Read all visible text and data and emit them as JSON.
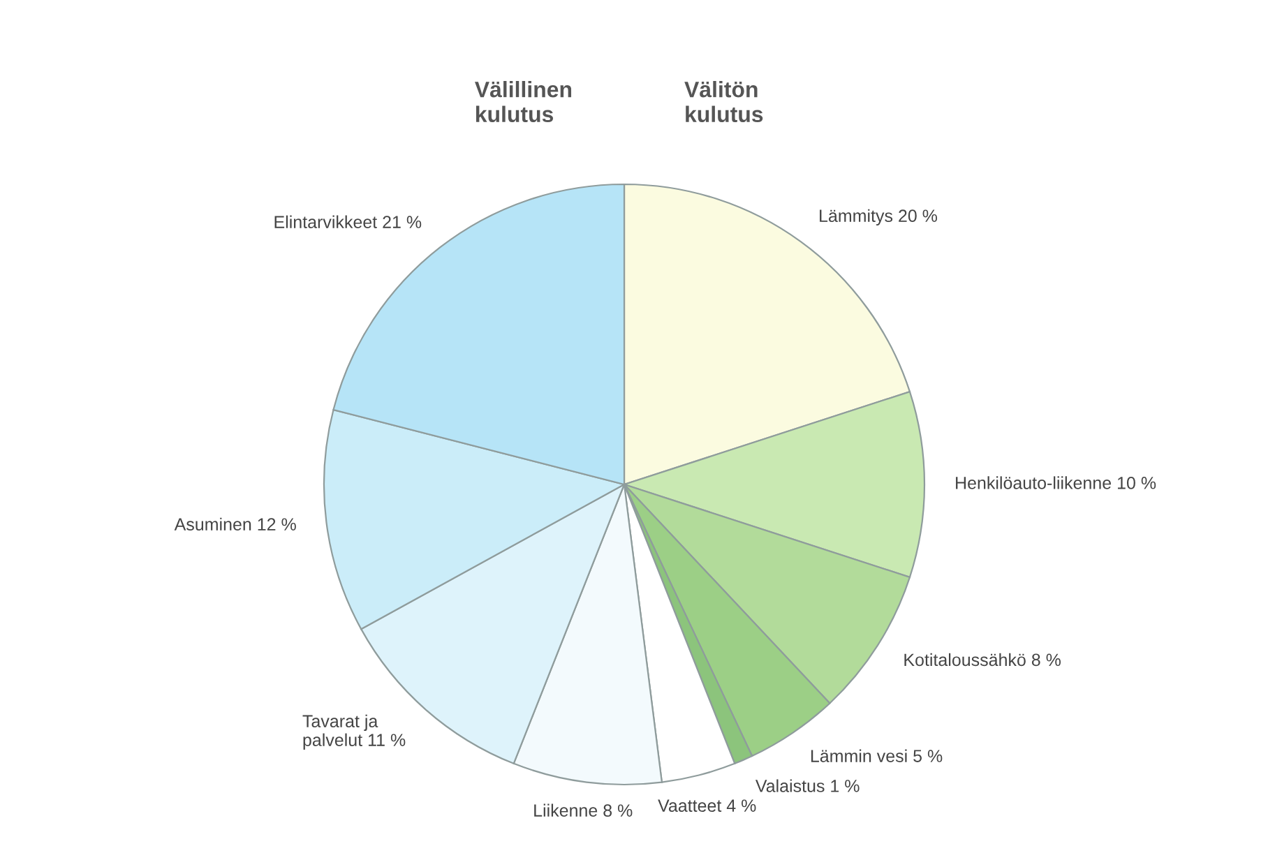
{
  "chart_data": {
    "type": "pie",
    "categories": [
      "Lämmitys",
      "Henkilöauto-liikenne",
      "Kotitaloussähkö",
      "Lämmin vesi",
      "Valaistus",
      "Vaatteet",
      "Liikenne",
      "Tavarat ja\npalvelut",
      "Asuminen",
      "Elintarvikkeet"
    ],
    "values": [
      20,
      10,
      8,
      5,
      1,
      4,
      8,
      11,
      12,
      21
    ],
    "value_labels": [
      "20 %",
      "10 %",
      "8 %",
      "5 %",
      "1 %",
      "4 %",
      "8 %",
      "11 %",
      "12 %",
      "21 %"
    ],
    "colors": [
      "#fbfbe0",
      "#c9e9b2",
      "#b2db9a",
      "#9ccf86",
      "#8cc47c",
      "#ffffff",
      "#f3fafd",
      "#def3fb",
      "#cbedf9",
      "#b6e4f7"
    ],
    "annotations": [
      "Välillinen\nkulutus",
      "Välitön\nkulutus"
    ]
  }
}
